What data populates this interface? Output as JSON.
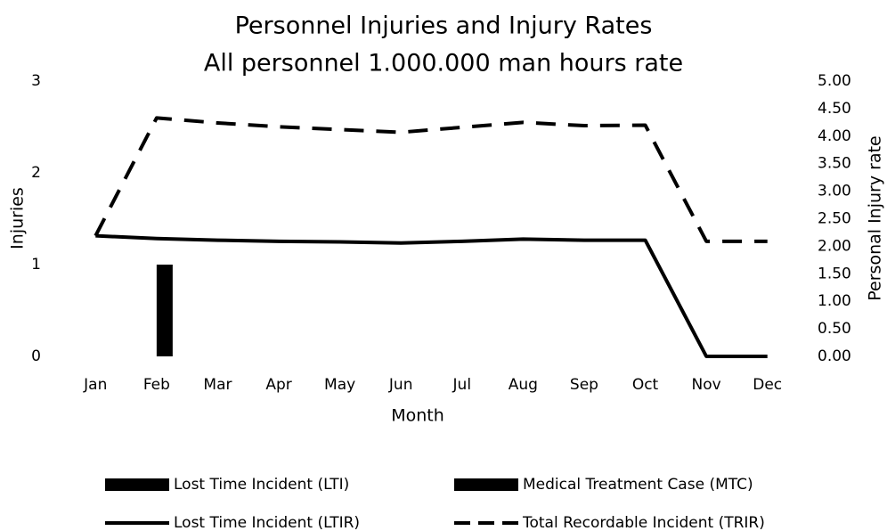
{
  "chart_data": {
    "type": "combo",
    "title": "Personnel Injuries and Injury Rates",
    "subtitle": "All personnel  1.000.000 man hours rate",
    "xlabel": "Month",
    "ylabel": "Injuries",
    "y2label": "Personal Injury rate",
    "categories": [
      "Jan",
      "Feb",
      "Mar",
      "Apr",
      "May",
      "Jun",
      "Jul",
      "Aug",
      "Sep",
      "Oct",
      "Nov",
      "Dec"
    ],
    "series": [
      {
        "name": "Lost Time Incident (LTI)",
        "type": "bar",
        "color": "#000000",
        "values": [
          0,
          0,
          0,
          0,
          0,
          0,
          0,
          0,
          0,
          0,
          0,
          0
        ]
      },
      {
        "name": "Medical Treatment Case (MTC)",
        "type": "bar",
        "color": "#000000",
        "values": [
          0,
          1,
          0,
          0,
          0,
          0,
          0,
          0,
          0,
          0,
          0,
          0
        ]
      },
      {
        "name": "Lost Time Incident (LTIR)",
        "type": "line",
        "axis": "y2",
        "line_style": "solid",
        "color": "#000000",
        "values": [
          2.19,
          2.14,
          2.11,
          2.09,
          2.08,
          2.06,
          2.09,
          2.13,
          2.11,
          2.11,
          0,
          0
        ]
      },
      {
        "name": "Total Recordable Incident (TRIR)",
        "type": "line",
        "axis": "y2",
        "line_style": "dashed",
        "color": "#000000",
        "values": [
          2.19,
          4.33,
          4.24,
          4.17,
          4.12,
          4.07,
          4.16,
          4.25,
          4.19,
          4.2,
          2.09,
          2.09
        ]
      }
    ],
    "ylim": [
      0,
      3
    ],
    "yticks": [
      0,
      1,
      2,
      3
    ],
    "y2lim": [
      0,
      5
    ],
    "y2ticks": [
      {
        "value": 0,
        "label": "0.00"
      },
      {
        "value": 0.5,
        "label": "0.50"
      },
      {
        "value": 1,
        "label": "1.00"
      },
      {
        "value": 1.5,
        "label": "1.50"
      },
      {
        "value": 2,
        "label": "2.00"
      },
      {
        "value": 2.5,
        "label": "2.50"
      },
      {
        "value": 3,
        "label": "3.00"
      },
      {
        "value": 3.5,
        "label": "3.50"
      },
      {
        "value": 4,
        "label": "4.00"
      },
      {
        "value": 4.5,
        "label": "4.50"
      },
      {
        "value": 5,
        "label": "5.00"
      }
    ],
    "grid": false,
    "legend": "bottom"
  }
}
